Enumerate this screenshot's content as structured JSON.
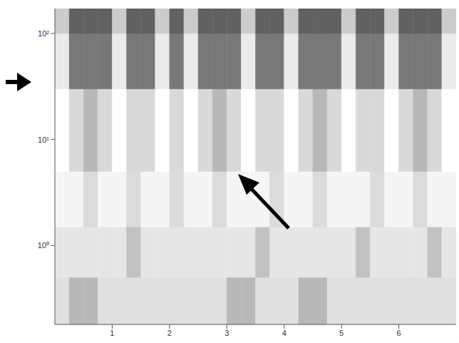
{
  "chart_data": {
    "type": "heatmap",
    "xlim": [
      0,
      7
    ],
    "xticks": [
      1,
      2,
      3,
      4,
      5,
      6
    ],
    "ylim": [
      0.18,
      172
    ],
    "yticks": [
      {
        "value": 1,
        "label": "10⁰"
      },
      {
        "value": 10,
        "label": "10¹"
      },
      {
        "value": 100,
        "label": "10²"
      }
    ],
    "log": "y",
    "grid": false,
    "x_edges": [
      0,
      0.25,
      0.5,
      0.75,
      1,
      1.25,
      1.5,
      1.75,
      2,
      2.25,
      2.5,
      2.75,
      3,
      3.25,
      3.5,
      3.75,
      4,
      4.25,
      4.5,
      4.75,
      5,
      5.25,
      5.5,
      5.75,
      6,
      6.25,
      6.5,
      6.75,
      7
    ],
    "y_edges": [
      0.18,
      0.5,
      1.5,
      5,
      30,
      100,
      172
    ],
    "z": [
      [
        0.88,
        0.72,
        0.72,
        0.88,
        0.88,
        0.88,
        0.88,
        0.88,
        0.88,
        0.88,
        0.88,
        0.88,
        0.72,
        0.72,
        0.88,
        0.88,
        0.88,
        0.72,
        0.72,
        0.88,
        0.88,
        0.88,
        0.88,
        0.88,
        0.88,
        0.88,
        0.88,
        0.88
      ],
      [
        0.9,
        0.9,
        0.9,
        0.9,
        0.9,
        0.76,
        0.9,
        0.9,
        0.9,
        0.9,
        0.9,
        0.9,
        0.9,
        0.9,
        0.76,
        0.9,
        0.9,
        0.9,
        0.9,
        0.9,
        0.9,
        0.76,
        0.9,
        0.9,
        0.9,
        0.9,
        0.76,
        0.9
      ],
      [
        0.96,
        0.96,
        0.86,
        0.96,
        0.96,
        0.86,
        0.96,
        0.96,
        0.86,
        0.96,
        0.96,
        0.86,
        0.96,
        0.96,
        0.96,
        0.86,
        0.96,
        0.96,
        0.86,
        0.96,
        0.96,
        0.96,
        0.86,
        0.96,
        0.96,
        0.86,
        0.96,
        0.96
      ],
      [
        1,
        0.85,
        0.72,
        0.85,
        1,
        0.85,
        0.85,
        1,
        0.85,
        1,
        0.85,
        0.72,
        0.85,
        1,
        0.85,
        0.85,
        1,
        0.85,
        0.72,
        0.85,
        1,
        0.85,
        0.85,
        1,
        0.85,
        0.72,
        0.85,
        1
      ],
      [
        0.92,
        0.47,
        0.47,
        0.47,
        0.92,
        0.47,
        0.47,
        0.92,
        0.47,
        0.92,
        0.47,
        0.47,
        0.47,
        0.92,
        0.47,
        0.47,
        0.92,
        0.47,
        0.47,
        0.47,
        0.92,
        0.47,
        0.47,
        0.92,
        0.47,
        0.47,
        0.47,
        0.92
      ],
      [
        0.8,
        0.38,
        0.38,
        0.38,
        0.8,
        0.38,
        0.38,
        0.8,
        0.38,
        0.8,
        0.38,
        0.38,
        0.38,
        0.8,
        0.38,
        0.38,
        0.8,
        0.38,
        0.38,
        0.38,
        0.8,
        0.38,
        0.38,
        0.8,
        0.38,
        0.38,
        0.38,
        0.8
      ]
    ]
  }
}
